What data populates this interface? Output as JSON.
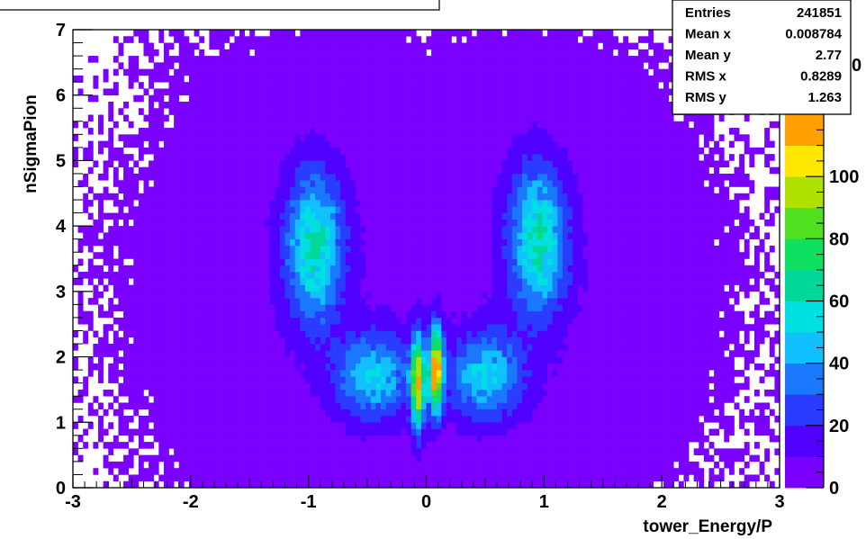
{
  "chart_data": {
    "type": "heatmap",
    "title": "",
    "xlabel": "tower_Energy/P",
    "ylabel": "nSigmaPion",
    "xlim": [
      -3,
      3
    ],
    "ylim": [
      0,
      7
    ],
    "x_ticks": [
      "-3",
      "-2",
      "-1",
      "0",
      "1",
      "2",
      "3"
    ],
    "y_ticks": [
      "0",
      "1",
      "2",
      "3",
      "4",
      "5",
      "6",
      "7"
    ],
    "z_ticks": [
      "0",
      "20",
      "40",
      "60",
      "80",
      "100"
    ],
    "z_range": [
      0,
      120
    ],
    "colormap": [
      "#7a00ff",
      "#5000ff",
      "#2a3cff",
      "#1a78ff",
      "#10c0ff",
      "#00e0e0",
      "#00d89a",
      "#10e060",
      "#50e020",
      "#b0e000",
      "#ffe800",
      "#ffa000"
    ],
    "partial_label": "0",
    "clusters": [
      {
        "x": -0.95,
        "y": 3.7,
        "sx": 0.17,
        "sy": 0.8,
        "peak": 55
      },
      {
        "x": 0.95,
        "y": 3.8,
        "sx": 0.17,
        "sy": 0.8,
        "peak": 55
      },
      {
        "x": -0.45,
        "y": 1.7,
        "sx": 0.22,
        "sy": 0.45,
        "peak": 45
      },
      {
        "x": 0.5,
        "y": 1.7,
        "sx": 0.22,
        "sy": 0.45,
        "peak": 45
      },
      {
        "x": -0.07,
        "y": 1.6,
        "sx": 0.04,
        "sy": 0.5,
        "peak": 95
      },
      {
        "x": 0.08,
        "y": 1.8,
        "sx": 0.04,
        "sy": 0.45,
        "peak": 110
      }
    ],
    "stats": {
      "rows": [
        {
          "label": "Entries",
          "value": "241851"
        },
        {
          "label": "Mean x",
          "value": "0.008784"
        },
        {
          "label": "Mean y",
          "value": "2.77"
        },
        {
          "label": "RMS x",
          "value": "0.8289"
        },
        {
          "label": "RMS y",
          "value": "1.263"
        }
      ]
    }
  }
}
